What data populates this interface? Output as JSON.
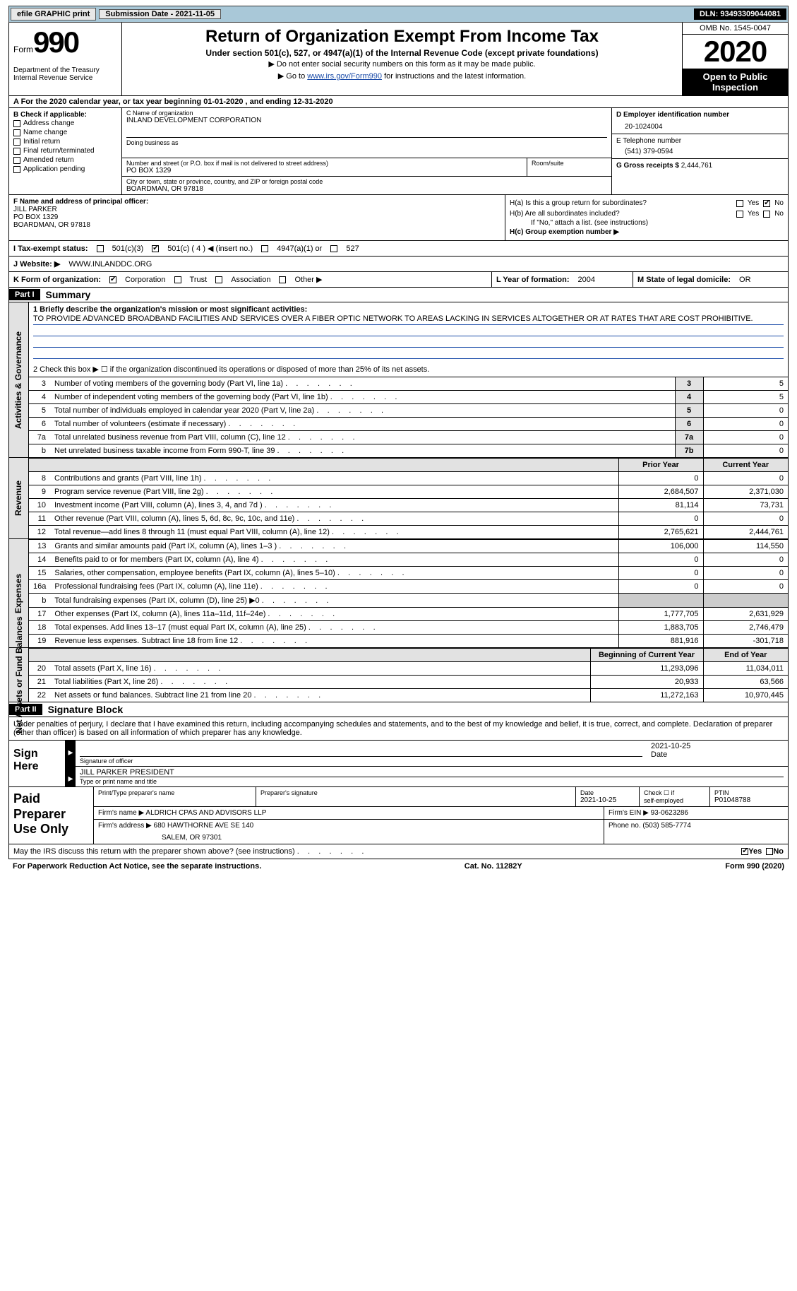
{
  "topbar": {
    "efile_label": "efile GRAPHIC print",
    "submission_label": "Submission Date - 2021-11-05",
    "dln": "DLN: 93493309044081"
  },
  "header": {
    "form_prefix": "Form",
    "form_number": "990",
    "dept": "Department of the Treasury\nInternal Revenue Service",
    "title": "Return of Organization Exempt From Income Tax",
    "subtitle": "Under section 501(c), 527, or 4947(a)(1) of the Internal Revenue Code (except private foundations)",
    "note1": "▶ Do not enter social security numbers on this form as it may be made public.",
    "note2_prefix": "▶ Go to ",
    "note2_link": "www.irs.gov/Form990",
    "note2_suffix": " for instructions and the latest information.",
    "omb": "OMB No. 1545-0047",
    "year": "2020",
    "inspection": "Open to Public Inspection"
  },
  "row_a": "A For the 2020 calendar year, or tax year beginning 01-01-2020    , and ending 12-31-2020",
  "col_b": {
    "label": "B Check if applicable:",
    "items": [
      "Address change",
      "Name change",
      "Initial return",
      "Final return/terminated",
      "Amended return",
      "Application pending"
    ]
  },
  "org": {
    "c_label": "C Name of organization",
    "name": "INLAND DEVELOPMENT CORPORATION",
    "dba_label": "Doing business as",
    "dba": "",
    "street_label": "Number and street (or P.O. box if mail is not delivered to street address)",
    "street": "PO BOX 1329",
    "room_label": "Room/suite",
    "room": "",
    "city_label": "City or town, state or province, country, and ZIP or foreign postal code",
    "city": "BOARDMAN, OR  97818"
  },
  "col_de": {
    "d_label": "D Employer identification number",
    "ein": "20-1024004",
    "e_label": "E Telephone number",
    "phone": "(541) 379-0594",
    "g_label": "G Gross receipts $",
    "gross": "2,444,761"
  },
  "f": {
    "label": "F Name and address of principal officer:",
    "name": "JILL PARKER",
    "street": "PO BOX 1329",
    "city": "BOARDMAN, OR  97818"
  },
  "h": {
    "a_label": "H(a)  Is this a group return for subordinates?",
    "a_yes": "Yes",
    "a_no": "No",
    "b_label": "H(b)  Are all subordinates included?",
    "b_yes": "Yes",
    "b_no": "No",
    "b_note": "If \"No,\" attach a list. (see instructions)",
    "c_label": "H(c)  Group exemption number ▶"
  },
  "i": {
    "label": "I  Tax-exempt status:",
    "opt1": "501(c)(3)",
    "opt2": "501(c) ( 4 ) ◀ (insert no.)",
    "opt3": "4947(a)(1) or",
    "opt4": "527"
  },
  "j": {
    "label": "J  Website: ▶",
    "value": "WWW.INLANDDC.ORG"
  },
  "k": {
    "label": "K Form of organization:",
    "opt1": "Corporation",
    "opt2": "Trust",
    "opt3": "Association",
    "opt4": "Other ▶"
  },
  "l": {
    "label": "L Year of formation:",
    "value": "2004"
  },
  "m": {
    "label": "M State of legal domicile:",
    "value": "OR"
  },
  "part1": {
    "hdr": "Part I",
    "title": "Summary",
    "line1_label": "1  Briefly describe the organization's mission or most significant activities:",
    "mission": "TO PROVIDE ADVANCED BROADBAND FACILITIES AND SERVICES OVER A FIBER OPTIC NETWORK TO AREAS LACKING IN SERVICES ALTOGETHER OR AT RATES THAT ARE COST PROHIBITIVE.",
    "line2": "2   Check this box ▶ ☐  if the organization discontinued its operations or disposed of more than 25% of its net assets."
  },
  "gov_lines": [
    {
      "n": "3",
      "text": "Number of voting members of the governing body (Part VI, line 1a)",
      "box": "3",
      "val": "5"
    },
    {
      "n": "4",
      "text": "Number of independent voting members of the governing body (Part VI, line 1b)",
      "box": "4",
      "val": "5"
    },
    {
      "n": "5",
      "text": "Total number of individuals employed in calendar year 2020 (Part V, line 2a)",
      "box": "5",
      "val": "0"
    },
    {
      "n": "6",
      "text": "Total number of volunteers (estimate if necessary)",
      "box": "6",
      "val": "0"
    },
    {
      "n": "7a",
      "text": "Total unrelated business revenue from Part VIII, column (C), line 12",
      "box": "7a",
      "val": "0"
    },
    {
      "n": "b",
      "text": "Net unrelated business taxable income from Form 990-T, line 39",
      "box": "7b",
      "val": "0"
    }
  ],
  "col_headers": {
    "prior": "Prior Year",
    "current": "Current Year"
  },
  "revenue_lines": [
    {
      "n": "8",
      "text": "Contributions and grants (Part VIII, line 1h)",
      "prior": "0",
      "curr": "0"
    },
    {
      "n": "9",
      "text": "Program service revenue (Part VIII, line 2g)",
      "prior": "2,684,507",
      "curr": "2,371,030"
    },
    {
      "n": "10",
      "text": "Investment income (Part VIII, column (A), lines 3, 4, and 7d )",
      "prior": "81,114",
      "curr": "73,731"
    },
    {
      "n": "11",
      "text": "Other revenue (Part VIII, column (A), lines 5, 6d, 8c, 9c, 10c, and 11e)",
      "prior": "0",
      "curr": "0"
    },
    {
      "n": "12",
      "text": "Total revenue—add lines 8 through 11 (must equal Part VIII, column (A), line 12)",
      "prior": "2,765,621",
      "curr": "2,444,761"
    }
  ],
  "expense_lines": [
    {
      "n": "13",
      "text": "Grants and similar amounts paid (Part IX, column (A), lines 1–3 )",
      "prior": "106,000",
      "curr": "114,550"
    },
    {
      "n": "14",
      "text": "Benefits paid to or for members (Part IX, column (A), line 4)",
      "prior": "0",
      "curr": "0"
    },
    {
      "n": "15",
      "text": "Salaries, other compensation, employee benefits (Part IX, column (A), lines 5–10)",
      "prior": "0",
      "curr": "0"
    },
    {
      "n": "16a",
      "text": "Professional fundraising fees (Part IX, column (A), line 11e)",
      "prior": "0",
      "curr": "0"
    },
    {
      "n": "b",
      "text": "Total fundraising expenses (Part IX, column (D), line 25) ▶0",
      "prior": "",
      "curr": "",
      "shaded": true
    },
    {
      "n": "17",
      "text": "Other expenses (Part IX, column (A), lines 11a–11d, 11f–24e)",
      "prior": "1,777,705",
      "curr": "2,631,929"
    },
    {
      "n": "18",
      "text": "Total expenses. Add lines 13–17 (must equal Part IX, column (A), line 25)",
      "prior": "1,883,705",
      "curr": "2,746,479"
    },
    {
      "n": "19",
      "text": "Revenue less expenses. Subtract line 18 from line 12",
      "prior": "881,916",
      "curr": "-301,718"
    }
  ],
  "net_headers": {
    "prior": "Beginning of Current Year",
    "current": "End of Year"
  },
  "net_lines": [
    {
      "n": "20",
      "text": "Total assets (Part X, line 16)",
      "prior": "11,293,096",
      "curr": "11,034,011"
    },
    {
      "n": "21",
      "text": "Total liabilities (Part X, line 26)",
      "prior": "20,933",
      "curr": "63,566"
    },
    {
      "n": "22",
      "text": "Net assets or fund balances. Subtract line 21 from line 20",
      "prior": "11,272,163",
      "curr": "10,970,445"
    }
  ],
  "side_tabs": {
    "gov": "Activities & Governance",
    "rev": "Revenue",
    "exp": "Expenses",
    "net": "Net Assets or Fund Balances"
  },
  "part2": {
    "hdr": "Part II",
    "title": "Signature Block",
    "decl": "Under penalties of perjury, I declare that I have examined this return, including accompanying schedules and statements, and to the best of my knowledge and belief, it is true, correct, and complete. Declaration of preparer (other than officer) is based on all information of which preparer has any knowledge."
  },
  "sign": {
    "label": "Sign Here",
    "sig_label": "Signature of officer",
    "date_label": "Date",
    "date": "2021-10-25",
    "name": "JILL PARKER  PRESIDENT",
    "name_label": "Type or print name and title"
  },
  "preparer": {
    "label": "Paid Preparer Use Only",
    "h1": "Print/Type preparer's name",
    "h2": "Preparer's signature",
    "h3": "Date",
    "date": "2021-10-25",
    "h4_1": "Check ☐ if",
    "h4_2": "self-employed",
    "h5": "PTIN",
    "ptin": "P01048788",
    "firm_name_label": "Firm's name    ▶",
    "firm_name": "ALDRICH CPAS AND ADVISORS LLP",
    "firm_ein_label": "Firm's EIN ▶",
    "firm_ein": "93-0623286",
    "firm_addr_label": "Firm's address ▶",
    "firm_addr1": "680 HAWTHORNE AVE SE 140",
    "firm_addr2": "SALEM, OR  97301",
    "phone_label": "Phone no.",
    "phone": "(503) 585-7774"
  },
  "discuss": {
    "text": "May the IRS discuss this return with the preparer shown above? (see instructions)",
    "yes": "Yes",
    "no": "No"
  },
  "footer": {
    "left": "For Paperwork Reduction Act Notice, see the separate instructions.",
    "mid": "Cat. No. 11282Y",
    "right": "Form 990 (2020)"
  }
}
